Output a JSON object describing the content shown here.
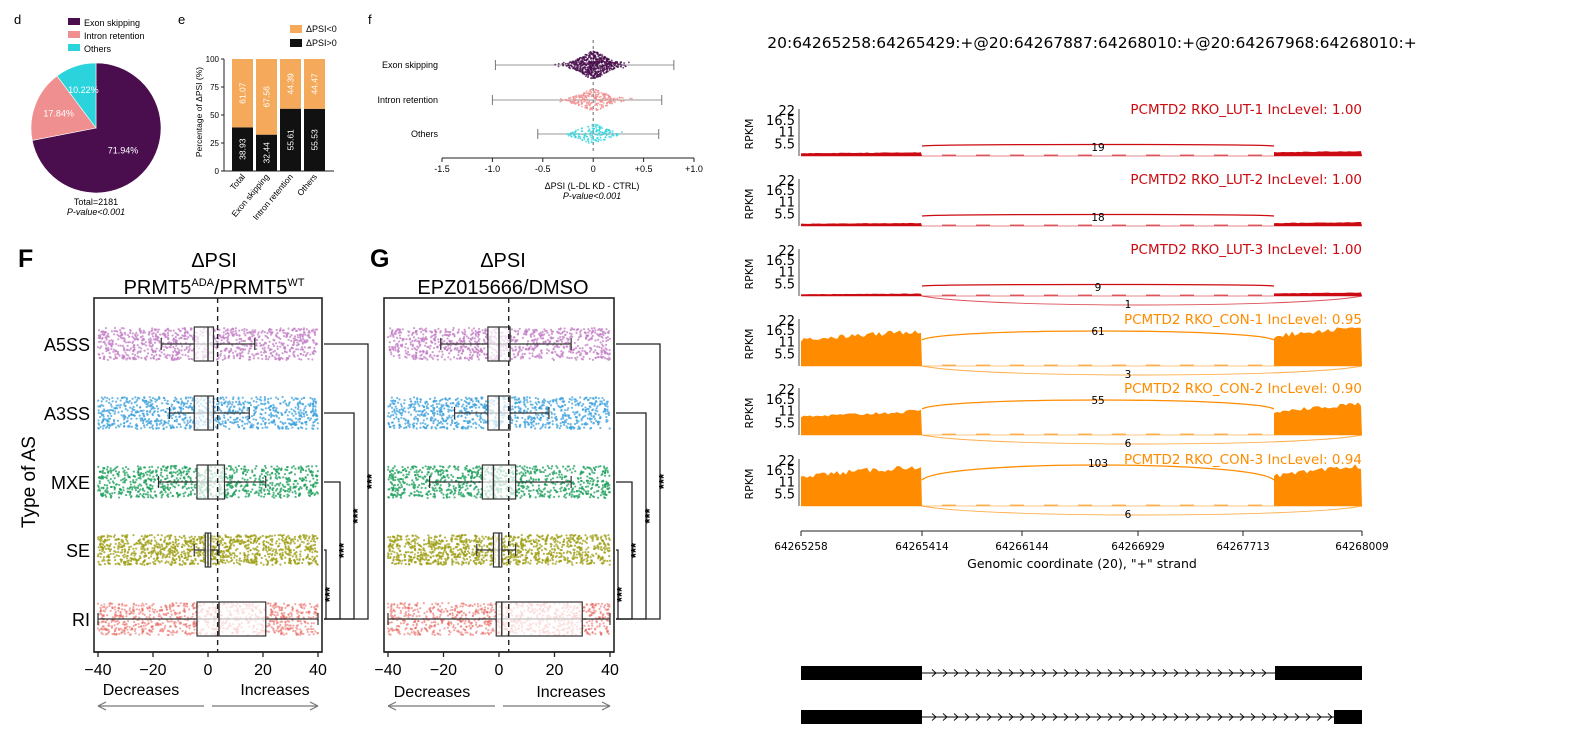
{
  "colors": {
    "exon_skipping": "#4a0e4e",
    "intron_retention": "#f08f8f",
    "others": "#2bd4dc",
    "dpsi_lt0": "#f5a95a",
    "dpsi_gt0": "#111111",
    "lut_red": "#cc0a12",
    "con_orange": "#ff8c00",
    "a5ss": "#c27cc4",
    "a3ss": "#3ba0dc",
    "mxe": "#1a9e5a",
    "se": "#9c9c10",
    "ri": "#e8605a"
  },
  "panel_d": {
    "label": "d",
    "legend": [
      "Exon skipping",
      "Intron retention",
      "Others"
    ],
    "total": "Total=2181",
    "pvalue": "P-value<0.001"
  },
  "panel_e": {
    "label": "e",
    "legend": [
      "ΔPSI<0",
      "ΔPSI>0"
    ],
    "ylabel": "Percentage of ΔPSI (%)",
    "yticks": [
      "0",
      "25",
      "50",
      "75",
      "100"
    ]
  },
  "panel_f": {
    "label": "f",
    "rows": [
      "Exon skipping",
      "Intron retention",
      "Others"
    ],
    "xticks": [
      "-1.5",
      "-1.0",
      "-0.5",
      "0",
      "+0.5",
      "+1.0"
    ],
    "xlabel": "ΔPSI (L-DL KD - CTRL)",
    "pvalue": "P-value<0.001"
  },
  "panel_F": {
    "label": "F",
    "title1": "ΔPSI",
    "title2_main": "PRMT5",
    "title2_sup1": "ADA",
    "title2_mid": "/PRMT5",
    "title2_sup2": "WT",
    "ylabel": "Type of AS",
    "xticks": [
      "−40",
      "−20",
      "0",
      "20",
      "40"
    ],
    "decreases": "Decreases",
    "increases": "Increases",
    "stars": [
      "***",
      "***",
      "***",
      "***"
    ]
  },
  "panel_G": {
    "label": "G",
    "title1": "ΔPSI",
    "title2": "EPZ015666/DMSO",
    "xticks": [
      "−40",
      "−20",
      "0",
      "20",
      "40"
    ],
    "decreases": "Decreases",
    "increases": "Increases",
    "stars": [
      "***",
      "***",
      "***",
      "***"
    ]
  },
  "sashimi": {
    "title": "20:64265258:64265429:+@20:64267887:64268010:+@20:64267968:64268010:+",
    "ylabel": "RPKM",
    "yticks": [
      "22",
      "16.5",
      "11",
      "5.5"
    ],
    "xticks": [
      "64265258",
      "64265414",
      "64266144",
      "64266929",
      "64267713",
      "64268009"
    ],
    "xlabel": "Genomic coordinate (20), \"+\" strand",
    "tracks": [
      {
        "label": "PCMTD2 RKO_LUT-1 IncLevel: 1.00",
        "upper": "19",
        "lower": ""
      },
      {
        "label": "PCMTD2 RKO_LUT-2 IncLevel: 1.00",
        "upper": "18",
        "lower": ""
      },
      {
        "label": "PCMTD2 RKO_LUT-3 IncLevel: 1.00",
        "upper": "9",
        "lower": "1"
      },
      {
        "label": "PCMTD2 RKO_CON-1 IncLevel: 0.95",
        "upper": "61",
        "lower": "3"
      },
      {
        "label": "PCMTD2 RKO_CON-2 IncLevel: 0.90",
        "upper": "55",
        "lower": "6"
      },
      {
        "label": "PCMTD2 RKO_CON-3 IncLevel: 0.94",
        "upper": "103",
        "lower": "6"
      }
    ]
  },
  "chart_data": [
    {
      "type": "pie",
      "panel": "d",
      "categories": [
        "Exon skipping",
        "Intron retention",
        "Others"
      ],
      "values": [
        71.94,
        17.84,
        10.22
      ],
      "labels": [
        "71.94%",
        "17.84%",
        "10.22%"
      ]
    },
    {
      "type": "bar",
      "panel": "e",
      "stacked": true,
      "categories": [
        "Total",
        "Exon skipping",
        "Intron retention",
        "Others"
      ],
      "series": [
        {
          "name": "ΔPSI>0",
          "values": [
            38.93,
            32.44,
            55.61,
            55.53
          ]
        },
        {
          "name": "ΔPSI<0",
          "values": [
            61.07,
            67.56,
            44.39,
            44.47
          ]
        }
      ],
      "ylim": [
        0,
        100
      ]
    },
    {
      "type": "scatter",
      "panel": "f",
      "categories": [
        "Exon skipping",
        "Intron retention",
        "Others"
      ],
      "whisker_range": [
        [
          -0.97,
          0.8
        ],
        [
          -1.0,
          0.68
        ],
        [
          -0.55,
          0.65
        ]
      ],
      "xlim": [
        -1.5,
        1.0
      ]
    },
    {
      "type": "scatter",
      "panel": "F",
      "categories": [
        "A5SS",
        "A3SS",
        "MXE",
        "SE",
        "RI"
      ],
      "box": [
        {
          "q1": -5,
          "median": 0,
          "q3": 2,
          "whisker": [
            -17,
            17
          ]
        },
        {
          "q1": -5,
          "median": 0,
          "q3": 2,
          "whisker": [
            -14,
            15
          ]
        },
        {
          "q1": -4,
          "median": 0,
          "q3": 6,
          "whisker": [
            -18,
            21
          ]
        },
        {
          "q1": -1,
          "median": 0,
          "q3": 1,
          "whisker": [
            -5,
            4
          ]
        },
        {
          "q1": -4,
          "median": 4,
          "q3": 21,
          "whisker": [
            -40,
            40
          ]
        }
      ],
      "xlim": [
        -40,
        40
      ]
    },
    {
      "type": "scatter",
      "panel": "G",
      "categories": [
        "A5SS",
        "A3SS",
        "MXE",
        "SE",
        "RI"
      ],
      "box": [
        {
          "q1": -4,
          "median": 0,
          "q3": 4,
          "whisker": [
            -21,
            26
          ]
        },
        {
          "q1": -4,
          "median": 0,
          "q3": 4,
          "whisker": [
            -16,
            18
          ]
        },
        {
          "q1": -6,
          "median": -2,
          "q3": 6,
          "whisker": [
            -25,
            26
          ]
        },
        {
          "q1": -2,
          "median": 0,
          "q3": 1,
          "whisker": [
            -8,
            6
          ]
        },
        {
          "q1": -1,
          "median": 1,
          "q3": 30,
          "whisker": [
            -40,
            40
          ]
        }
      ],
      "xlim": [
        -40,
        40
      ]
    },
    {
      "type": "area",
      "panel": "sashimi",
      "x_range": [
        64265258,
        64268009
      ],
      "y_range": [
        0,
        22
      ],
      "exon_regions": [
        [
          64265258,
          64265414
        ],
        [
          64267713,
          64268009
        ]
      ]
    }
  ]
}
